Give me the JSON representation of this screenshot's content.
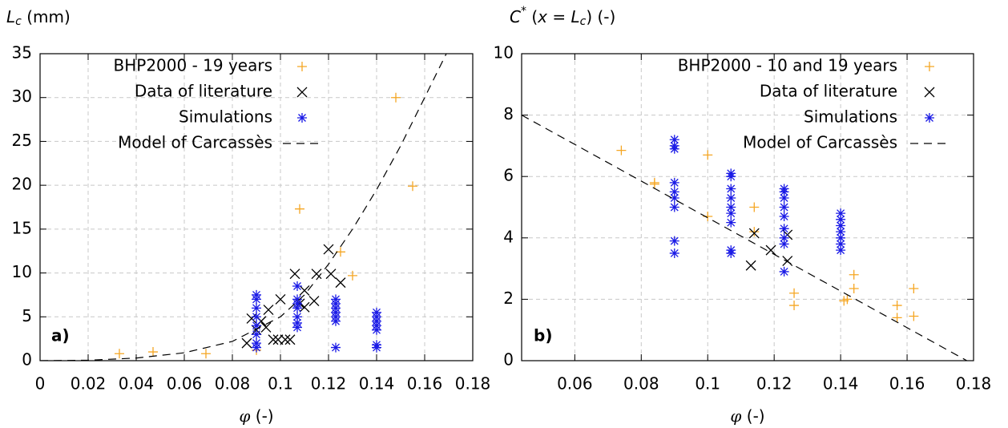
{
  "chart_data": [
    {
      "type": "scatter",
      "ylabel": [
        "L",
        "c",
        " (mm)"
      ],
      "xlabel": [
        "φ",
        " (-)"
      ],
      "annotation": "a)",
      "xlim": [
        0,
        0.18
      ],
      "ylim": [
        0,
        35
      ],
      "grid": true,
      "legend": "top-right",
      "xticks": [
        0,
        0.02,
        0.04,
        0.06,
        0.08,
        0.1,
        0.12,
        0.14,
        0.16,
        0.18
      ],
      "yticks": [
        0,
        5,
        10,
        15,
        20,
        25,
        30,
        35
      ],
      "series": [
        {
          "name": "BHP2000 - 19 years",
          "color": "#f5a623",
          "marker": "+",
          "x": [
            0.033,
            0.047,
            0.069,
            0.09,
            0.108,
            0.125,
            0.13,
            0.148,
            0.155
          ],
          "y": [
            0.8,
            1.0,
            0.8,
            1.2,
            17.3,
            12.4,
            9.7,
            30,
            19.9
          ]
        },
        {
          "name": "Data of literature",
          "color": "#000000",
          "marker": "x",
          "x": [
            0.086,
            0.088,
            0.09,
            0.092,
            0.094,
            0.095,
            0.097,
            0.099,
            0.1,
            0.102,
            0.104,
            0.106,
            0.108,
            0.11,
            0.11,
            0.114,
            0.115,
            0.12,
            0.121,
            0.125
          ],
          "y": [
            2.0,
            4.8,
            3.5,
            4.5,
            3.8,
            5.8,
            2.4,
            2.4,
            7.0,
            2.4,
            2.4,
            9.9,
            6.5,
            6.1,
            8.0,
            6.8,
            9.9,
            12.7,
            9.9,
            8.9
          ]
        },
        {
          "name": "Simulations",
          "color": "#1a1ae6",
          "marker": "*",
          "x": [
            0.09,
            0.09,
            0.09,
            0.09,
            0.09,
            0.09,
            0.09,
            0.09,
            0.107,
            0.107,
            0.107,
            0.107,
            0.107,
            0.107,
            0.107,
            0.123,
            0.123,
            0.123,
            0.123,
            0.123,
            0.123,
            0.123,
            0.14,
            0.14,
            0.14,
            0.14,
            0.14,
            0.14,
            0.14
          ],
          "y": [
            1.5,
            2,
            3,
            4,
            5,
            6,
            7,
            7.5,
            3.8,
            4.3,
            5,
            6,
            6.5,
            7,
            8.5,
            1.5,
            4.5,
            5,
            5.5,
            6,
            6.5,
            7,
            1.5,
            1.8,
            3.5,
            4,
            4.5,
            5,
            5.5
          ]
        },
        {
          "name": "Model of Carcassès",
          "color": "#000000",
          "marker": "dash",
          "x": [
            0,
            0.02,
            0.04,
            0.06,
            0.08,
            0.1,
            0.11,
            0.12,
            0.13,
            0.14,
            0.15,
            0.16,
            0.169
          ],
          "y": [
            0,
            0.05,
            0.3,
            0.9,
            2.2,
            5,
            7.5,
            11,
            15,
            19.5,
            24.5,
            30,
            35
          ]
        }
      ]
    },
    {
      "type": "scatter",
      "ylabel": [
        "C",
        "*",
        " (",
        "x",
        " = ",
        "L",
        "c",
        ") (-)"
      ],
      "xlabel": [
        "φ",
        " (-)"
      ],
      "annotation": "b)",
      "xlim": [
        0.044,
        0.18
      ],
      "ylim": [
        0,
        10
      ],
      "grid": true,
      "legend": "top-right",
      "xticks": [
        0.06,
        0.08,
        0.1,
        0.12,
        0.14,
        0.16,
        0.18
      ],
      "yticks": [
        0,
        2,
        4,
        6,
        8,
        10
      ],
      "series": [
        {
          "name": "BHP2000 - 10 and 19 years",
          "color": "#f5a623",
          "marker": "+",
          "x": [
            0.074,
            0.084,
            0.084,
            0.1,
            0.1,
            0.114,
            0.114,
            0.126,
            0.126,
            0.141,
            0.142,
            0.144,
            0.144,
            0.157,
            0.157,
            0.162,
            0.162
          ],
          "y": [
            6.85,
            5.8,
            5.75,
            6.7,
            4.7,
            5.0,
            4.2,
            2.2,
            1.8,
            1.95,
            2.0,
            2.8,
            2.35,
            1.8,
            1.4,
            2.35,
            1.45
          ]
        },
        {
          "name": "Data of literature",
          "color": "#000000",
          "marker": "x",
          "x": [
            0.113,
            0.114,
            0.119,
            0.124,
            0.124
          ],
          "y": [
            3.1,
            4.15,
            3.6,
            3.25,
            4.1
          ]
        },
        {
          "name": "Simulations",
          "color": "#1a1ae6",
          "marker": "*",
          "x": [
            0.09,
            0.09,
            0.09,
            0.09,
            0.09,
            0.09,
            0.09,
            0.09,
            0.09,
            0.107,
            0.107,
            0.107,
            0.107,
            0.107,
            0.107,
            0.107,
            0.107,
            0.107,
            0.123,
            0.123,
            0.123,
            0.123,
            0.123,
            0.123,
            0.123,
            0.123,
            0.123,
            0.14,
            0.14,
            0.14,
            0.14,
            0.14,
            0.14,
            0.14
          ],
          "y": [
            3.5,
            3.9,
            5,
            5.3,
            5.5,
            5.8,
            6.9,
            7,
            7.2,
            3.5,
            3.6,
            4.5,
            4.8,
            5,
            5.3,
            5.6,
            6,
            6.1,
            2.9,
            3.8,
            4,
            4.3,
            4.7,
            5,
            5.3,
            5.5,
            5.6,
            3.6,
            3.8,
            4,
            4.2,
            4.4,
            4.6,
            4.8
          ]
        },
        {
          "name": "Model of Carcassès",
          "color": "#000000",
          "marker": "dash",
          "x": [
            0.044,
            0.178
          ],
          "y": [
            8,
            0
          ]
        }
      ]
    }
  ]
}
